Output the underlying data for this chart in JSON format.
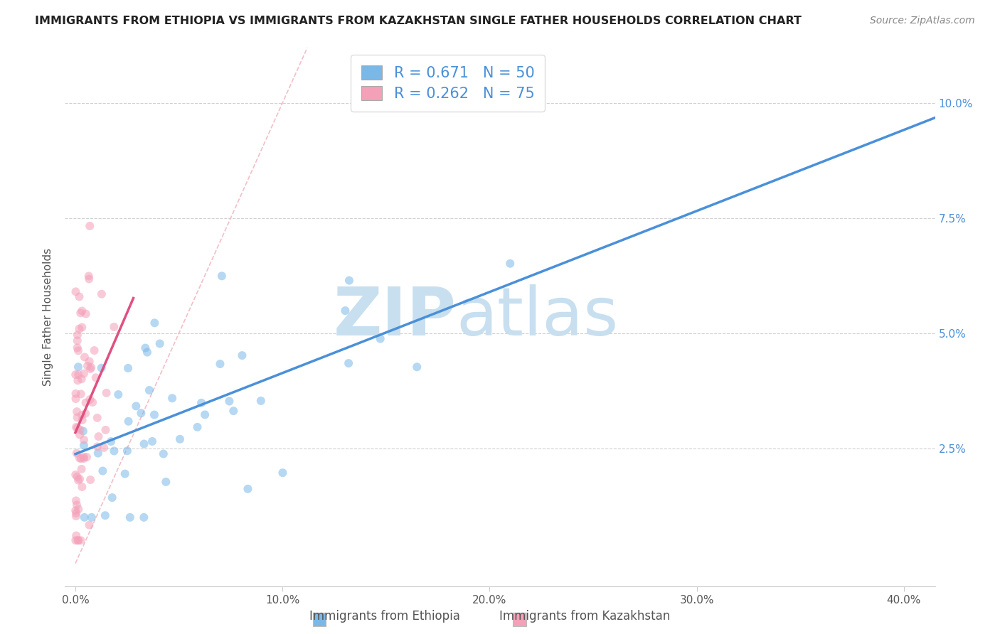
{
  "title": "IMMIGRANTS FROM ETHIOPIA VS IMMIGRANTS FROM KAZAKHSTAN SINGLE FATHER HOUSEHOLDS CORRELATION CHART",
  "source": "Source: ZipAtlas.com",
  "ylabel": "Single Father Households",
  "x_tick_labels": [
    "0.0%",
    "10.0%",
    "20.0%",
    "30.0%",
    "40.0%"
  ],
  "x_tick_values": [
    0.0,
    0.1,
    0.2,
    0.3,
    0.4
  ],
  "y_tick_labels": [
    "2.5%",
    "5.0%",
    "7.5%",
    "10.0%"
  ],
  "y_tick_values": [
    0.025,
    0.05,
    0.075,
    0.1
  ],
  "xlim": [
    -0.005,
    0.415
  ],
  "ylim": [
    -0.005,
    0.112
  ],
  "legend_label_blue": "Immigrants from Ethiopia",
  "legend_label_pink": "Immigrants from Kazakhstan",
  "R_blue": 0.671,
  "N_blue": 50,
  "R_pink": 0.262,
  "N_pink": 75,
  "blue_color": "#7ab8e8",
  "pink_color": "#f4a0b8",
  "blue_line_color": "#4a90d9",
  "pink_line_color": "#e05080",
  "ref_line_color": "#f0b8c0",
  "watermark_zip": "ZIP",
  "watermark_atlas": "atlas",
  "title_fontsize": 11.5,
  "source_fontsize": 10,
  "tick_fontsize": 11,
  "legend_fontsize": 15,
  "ylabel_fontsize": 11
}
